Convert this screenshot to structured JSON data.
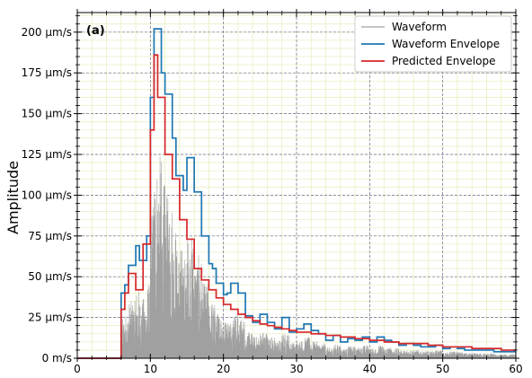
{
  "chart_data": {
    "type": "line",
    "panel_label": "(a)",
    "ylabel": "Amplitude",
    "xlabel": "",
    "xlim": [
      0,
      60
    ],
    "ylim": [
      0,
      212
    ],
    "x_ticks": [
      0,
      10,
      20,
      30,
      40,
      50,
      60
    ],
    "x_tick_labels": [
      "0",
      "10",
      "20",
      "30",
      "40",
      "50",
      "60"
    ],
    "y_ticks": [
      0,
      25,
      50,
      75,
      100,
      125,
      150,
      175,
      200
    ],
    "y_tick_labels": [
      "0 m/s",
      "25 µm/s",
      "50 µm/s",
      "75 µm/s",
      "100 µm/s",
      "125 µm/s",
      "150 µm/s",
      "175 µm/s",
      "200 µm/s"
    ],
    "grid": true,
    "legend_position": "top-right",
    "colors": {
      "waveform": "#a0a0a0",
      "waveform_envelope": "#1f77b4",
      "predicted_envelope": "#d62728",
      "major_grid": "#6b6b9a",
      "minor_grid": "#e9efc4"
    },
    "series": [
      {
        "name": "Waveform",
        "style": "noise",
        "onset": 5.5,
        "envelope_ref": "Waveform Envelope"
      },
      {
        "name": "Waveform Envelope",
        "style": "step",
        "x": [
          0,
          5.5,
          6.0,
          6.5,
          7.0,
          8.0,
          8.5,
          9.5,
          10.0,
          10.5,
          11.5,
          12.0,
          13.0,
          13.5,
          14.5,
          15.0,
          16.0,
          16.5,
          17.0,
          18.0,
          18.5,
          19.0,
          20.0,
          20.5,
          21.0,
          22.0,
          23.0,
          24.0,
          25.0,
          26.0,
          27.0,
          28.0,
          29.0,
          30.0,
          31.0,
          32.0,
          33.0,
          34.0,
          35.0,
          36.0,
          37.0,
          38.0,
          39.0,
          40.0,
          41.0,
          42.0,
          43.0,
          44.0,
          45.0,
          46.0,
          47.0,
          48.0,
          49.0,
          50.0,
          51.0,
          52.0,
          53.0,
          55.0,
          57.0,
          60.0
        ],
        "y": [
          0,
          0,
          40,
          45,
          57,
          69,
          60,
          75,
          160,
          202,
          175,
          162,
          135,
          112,
          103,
          123,
          102,
          102,
          75,
          58,
          55,
          46,
          39,
          40,
          46,
          40,
          26,
          22,
          27,
          22,
          18,
          25,
          16,
          18,
          21,
          17,
          15,
          11,
          14,
          10,
          12,
          11,
          13,
          10,
          13,
          11,
          10,
          8,
          9,
          8,
          7,
          7,
          8,
          6,
          7,
          6,
          5,
          5,
          4,
          4
        ]
      },
      {
        "name": "Predicted Envelope",
        "style": "step",
        "x": [
          0,
          5.5,
          6.0,
          6.5,
          7.0,
          8.0,
          9.0,
          10.0,
          10.5,
          11.0,
          12.0,
          13.0,
          14.0,
          15.0,
          16.0,
          17.0,
          18.0,
          19.0,
          20.0,
          21.0,
          22.0,
          23.0,
          24.0,
          25.0,
          26.0,
          27.0,
          28.0,
          29.0,
          30.0,
          32.0,
          34.0,
          36.0,
          38.0,
          40.0,
          42.0,
          44.0,
          46.0,
          48.0,
          50.0,
          52.0,
          54.0,
          56.0,
          58.0,
          60.0
        ],
        "y": [
          0,
          0,
          30,
          40,
          52,
          42,
          70,
          140,
          186,
          160,
          125,
          110,
          85,
          73,
          55,
          48,
          42,
          37,
          33,
          30,
          27,
          25,
          23,
          21,
          20,
          19,
          18,
          17,
          16,
          15,
          14,
          13,
          12,
          11,
          10,
          9,
          9,
          8,
          7,
          7,
          6,
          6,
          5,
          5
        ]
      }
    ]
  }
}
